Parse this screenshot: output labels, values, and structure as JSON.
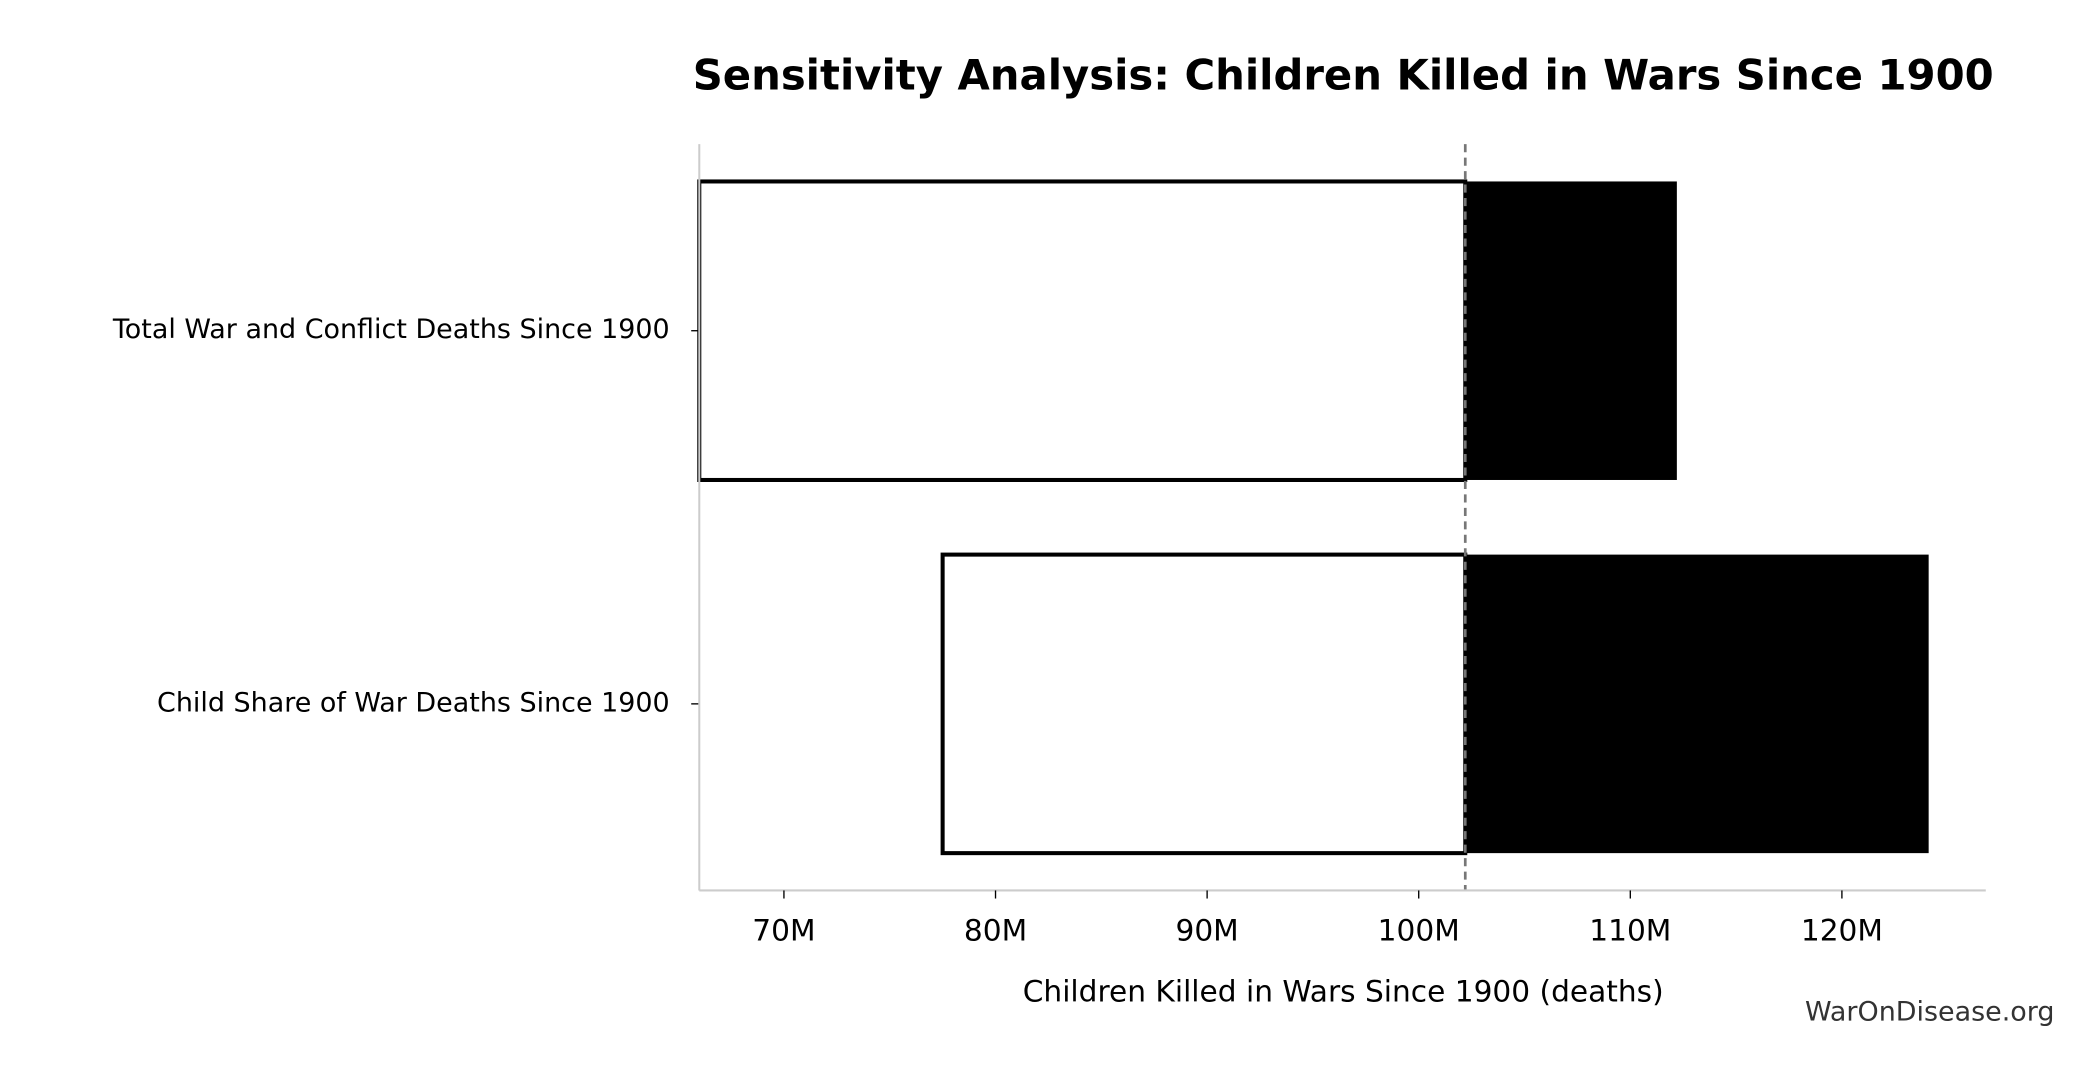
{
  "chart_data": {
    "type": "tornado",
    "title": "Sensitivity Analysis: Children Killed in Wars Since 1900",
    "xlabel": "Children Killed in Wars Since 1900 (deaths)",
    "watermark": "WarOnDisease.org",
    "categories": [
      "Total War and Conflict Deaths Since 1900",
      "Child Share of War Deaths Since 1900"
    ],
    "baseline": 102200000,
    "low_values": [
      66000000,
      77500000
    ],
    "high_values": [
      112200000,
      124100000
    ],
    "low_color": "#ffffff",
    "high_color": "#000000",
    "xlim": [
      66000000,
      126800000
    ],
    "xticks": [
      {
        "value": 70000000,
        "label": "70M"
      },
      {
        "value": 80000000,
        "label": "80M"
      },
      {
        "value": 90000000,
        "label": "90M"
      },
      {
        "value": 100000000,
        "label": "100M"
      },
      {
        "value": 110000000,
        "label": "110M"
      },
      {
        "value": 120000000,
        "label": "120M"
      }
    ]
  }
}
